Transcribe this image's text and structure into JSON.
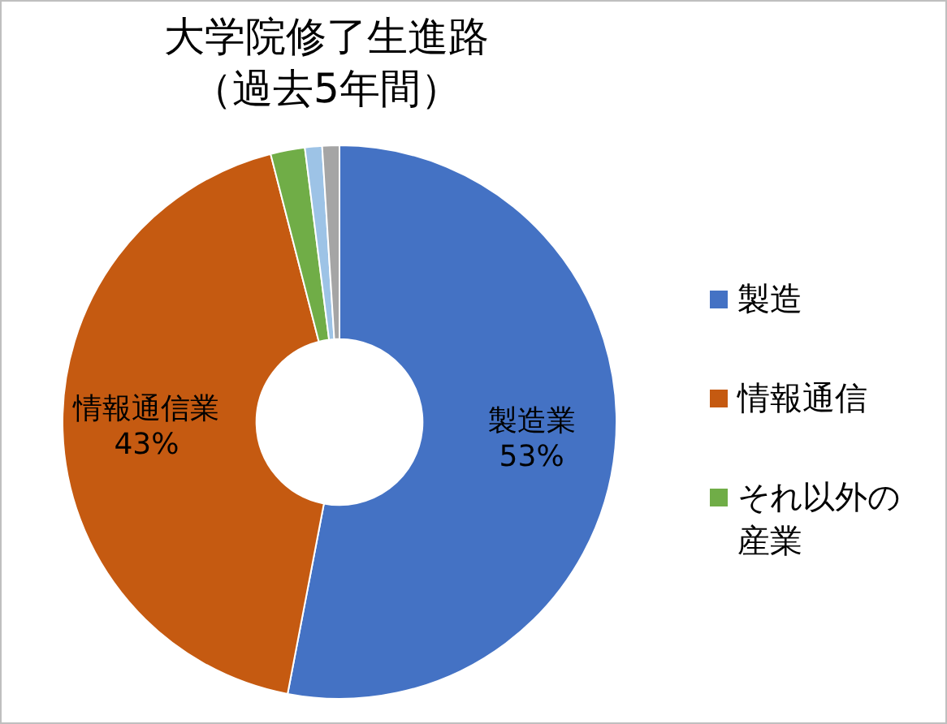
{
  "chart_data": {
    "type": "donut",
    "title": "大学院修了生進路",
    "subtitle": "（過去5年間）",
    "categories": [
      "製造",
      "情報通信",
      "それ以外の産業",
      null,
      null
    ],
    "values": [
      53,
      43,
      2,
      1,
      1
    ],
    "colors": [
      "#4472c4",
      "#c55a11",
      "#70ad47",
      "#9dc3e6",
      "#a5a5a5"
    ],
    "value_labels": [
      "製造業\n53%",
      "情報通信業\n43%",
      null,
      null,
      null
    ],
    "legend": "right"
  }
}
